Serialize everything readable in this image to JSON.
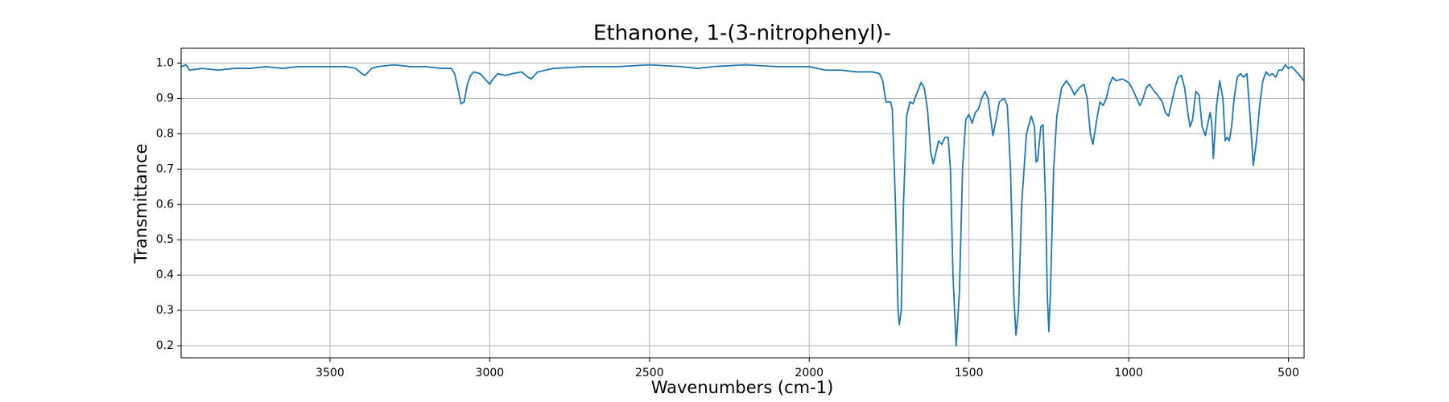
{
  "chart_data": {
    "type": "line",
    "title": "Ethanone, 1-(3-nitrophenyl)-",
    "xlabel": "Wavenumbers (cm-1)",
    "ylabel": "Transmittance",
    "color": "#1f77b4",
    "grid": true,
    "xlim": [
      3966,
      451
    ],
    "ylim": [
      0.166,
      1.042
    ],
    "xticks": [
      3500,
      3000,
      2500,
      2000,
      1500,
      1000,
      500
    ],
    "yticks": [
      0.2,
      0.3,
      0.4,
      0.5,
      0.6,
      0.7,
      0.8,
      0.9,
      {
        "value": 1,
        "label": "1.0"
      }
    ],
    "x": [
      3966,
      3950,
      3940,
      3900,
      3850,
      3800,
      3750,
      3700,
      3650,
      3600,
      3550,
      3500,
      3450,
      3420,
      3400,
      3390,
      3370,
      3350,
      3300,
      3250,
      3200,
      3150,
      3120,
      3110,
      3100,
      3090,
      3080,
      3070,
      3060,
      3050,
      3030,
      3010,
      3000,
      2990,
      2975,
      2950,
      2930,
      2900,
      2880,
      2870,
      2850,
      2800,
      2700,
      2600,
      2500,
      2400,
      2350,
      2300,
      2200,
      2100,
      2000,
      1950,
      1900,
      1850,
      1800,
      1780,
      1770,
      1760,
      1745,
      1740,
      1730,
      1722,
      1718,
      1712,
      1705,
      1695,
      1685,
      1675,
      1665,
      1650,
      1640,
      1630,
      1620,
      1612,
      1605,
      1595,
      1585,
      1575,
      1565,
      1558,
      1550,
      1540,
      1530,
      1520,
      1510,
      1500,
      1490,
      1480,
      1470,
      1460,
      1450,
      1440,
      1430,
      1425,
      1415,
      1405,
      1390,
      1380,
      1370,
      1360,
      1353,
      1345,
      1335,
      1320,
      1305,
      1295,
      1290,
      1285,
      1275,
      1268,
      1260,
      1255,
      1250,
      1245,
      1235,
      1225,
      1210,
      1195,
      1180,
      1170,
      1155,
      1140,
      1130,
      1120,
      1112,
      1100,
      1090,
      1080,
      1070,
      1060,
      1050,
      1040,
      1020,
      1000,
      990,
      975,
      965,
      955,
      945,
      935,
      920,
      910,
      895,
      885,
      875,
      865,
      855,
      845,
      835,
      825,
      815,
      808,
      800,
      790,
      780,
      770,
      760,
      750,
      745,
      740,
      735,
      725,
      715,
      705,
      698,
      692,
      685,
      678,
      670,
      660,
      650,
      640,
      630,
      620,
      610,
      600,
      590,
      580,
      570,
      560,
      550,
      540,
      530,
      520,
      510,
      500,
      490,
      480,
      470,
      460,
      452
    ],
    "values": [
      0.99,
      0.995,
      0.98,
      0.985,
      0.98,
      0.985,
      0.985,
      0.99,
      0.985,
      0.99,
      0.99,
      0.99,
      0.99,
      0.985,
      0.97,
      0.965,
      0.985,
      0.99,
      0.995,
      0.99,
      0.99,
      0.985,
      0.985,
      0.97,
      0.93,
      0.885,
      0.89,
      0.94,
      0.965,
      0.975,
      0.97,
      0.95,
      0.94,
      0.955,
      0.97,
      0.965,
      0.97,
      0.975,
      0.96,
      0.955,
      0.975,
      0.985,
      0.99,
      0.99,
      0.995,
      0.99,
      0.985,
      0.99,
      0.995,
      0.99,
      0.99,
      0.98,
      0.98,
      0.975,
      0.975,
      0.97,
      0.95,
      0.89,
      0.89,
      0.87,
      0.6,
      0.3,
      0.26,
      0.3,
      0.6,
      0.85,
      0.89,
      0.885,
      0.91,
      0.945,
      0.93,
      0.87,
      0.75,
      0.715,
      0.74,
      0.78,
      0.77,
      0.79,
      0.79,
      0.7,
      0.4,
      0.2,
      0.35,
      0.7,
      0.84,
      0.855,
      0.83,
      0.86,
      0.87,
      0.9,
      0.92,
      0.9,
      0.83,
      0.795,
      0.84,
      0.89,
      0.9,
      0.88,
      0.7,
      0.35,
      0.23,
      0.3,
      0.6,
      0.8,
      0.85,
      0.82,
      0.72,
      0.725,
      0.82,
      0.825,
      0.6,
      0.35,
      0.24,
      0.35,
      0.7,
      0.85,
      0.93,
      0.95,
      0.93,
      0.91,
      0.93,
      0.94,
      0.9,
      0.8,
      0.77,
      0.84,
      0.89,
      0.88,
      0.9,
      0.94,
      0.96,
      0.95,
      0.955,
      0.945,
      0.93,
      0.9,
      0.88,
      0.9,
      0.93,
      0.94,
      0.92,
      0.91,
      0.89,
      0.86,
      0.85,
      0.89,
      0.93,
      0.96,
      0.965,
      0.93,
      0.86,
      0.82,
      0.84,
      0.92,
      0.91,
      0.82,
      0.795,
      0.84,
      0.86,
      0.83,
      0.73,
      0.88,
      0.95,
      0.9,
      0.78,
      0.79,
      0.78,
      0.82,
      0.9,
      0.96,
      0.97,
      0.96,
      0.97,
      0.85,
      0.71,
      0.78,
      0.88,
      0.95,
      0.975,
      0.965,
      0.97,
      0.96,
      0.98,
      0.98,
      0.995,
      0.985,
      0.99,
      0.98,
      0.97,
      0.96,
      0.95
    ]
  }
}
